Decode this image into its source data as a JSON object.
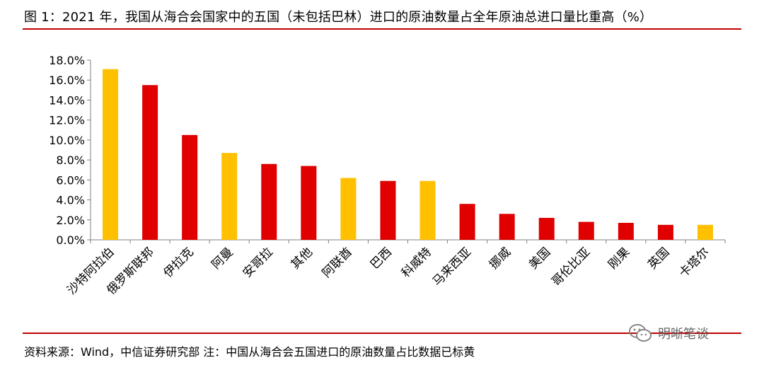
{
  "title": "图 1：2021 年，我国从海合会国家中的五国（未包括巴林）进口的原油数量占全年原油总进口量比重高（%）",
  "source_note": "资料来源：Wind，中信证券研究部 注：中国从海合会五国进口的原油数量占比数据已标黄",
  "watermark": {
    "text": "明晰笔谈",
    "icon": "wechat-icon"
  },
  "colors": {
    "rule": "#c00000",
    "highlight": "#ffc000",
    "default": "#e00000",
    "axis": "#808080"
  },
  "chart_data": {
    "type": "bar",
    "title": "",
    "xlabel": "",
    "ylabel": "",
    "ylim": [
      0,
      18
    ],
    "y_tick_step": 2,
    "y_tick_format": "percent_1dp",
    "grid": false,
    "legend": "none",
    "categories": [
      "沙特阿拉伯",
      "俄罗斯联邦",
      "伊拉克",
      "阿曼",
      "安哥拉",
      "其他",
      "阿联酋",
      "巴西",
      "科威特",
      "马来西亚",
      "挪威",
      "美国",
      "哥伦比亚",
      "刚果",
      "英国",
      "卡塔尔"
    ],
    "values": [
      17.1,
      15.5,
      10.5,
      8.7,
      7.6,
      7.4,
      6.2,
      5.9,
      5.9,
      3.6,
      2.6,
      2.2,
      1.8,
      1.7,
      1.5,
      1.5
    ],
    "highlighted": [
      true,
      false,
      false,
      true,
      false,
      false,
      true,
      false,
      true,
      false,
      false,
      false,
      false,
      false,
      false,
      true
    ]
  }
}
